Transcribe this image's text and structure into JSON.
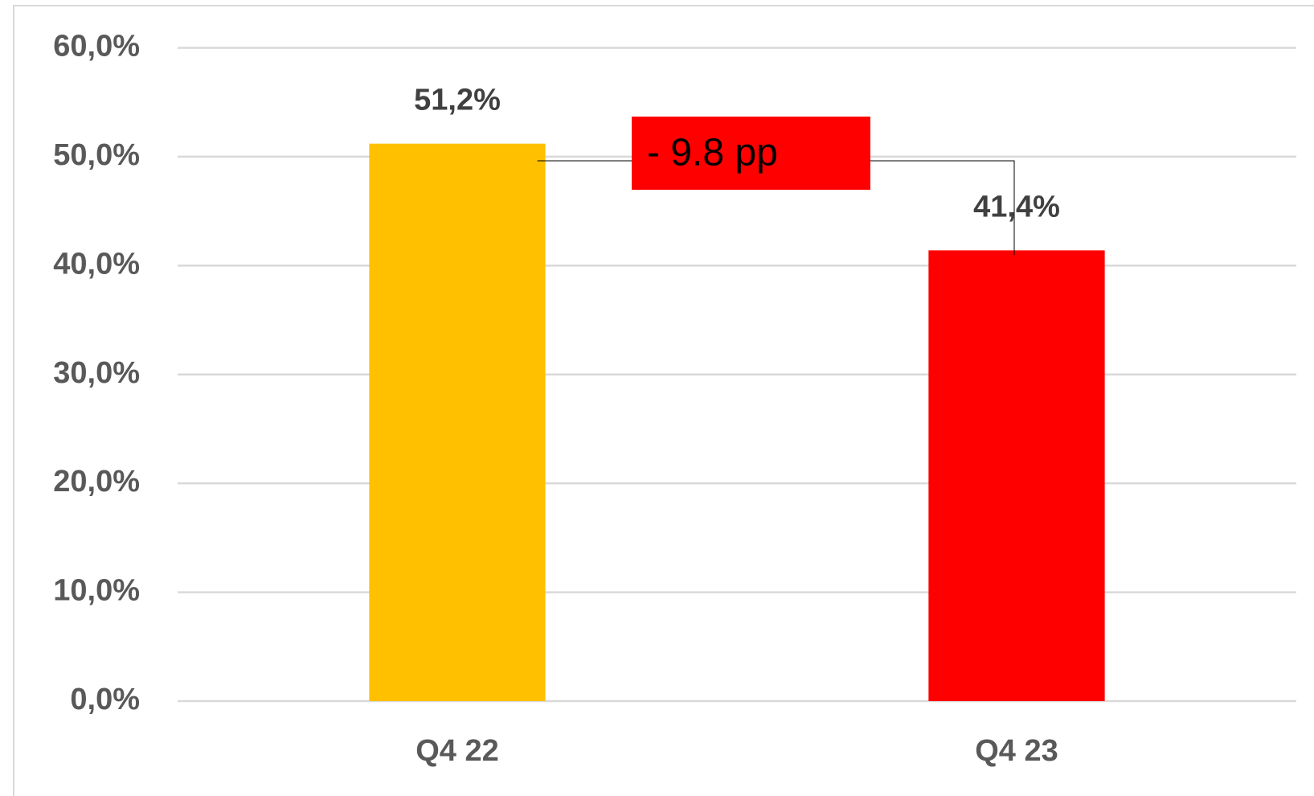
{
  "chart_data": {
    "type": "bar",
    "categories": [
      "Q4 22",
      "Q4 23"
    ],
    "values": [
      51.2,
      41.4
    ],
    "value_labels": [
      "51,2%",
      "41,4%"
    ],
    "colors": [
      "#ffc000",
      "#ff0000"
    ],
    "ylim": [
      0,
      60
    ],
    "yticks": [
      {
        "value": 0,
        "label": "0,0%"
      },
      {
        "value": 10,
        "label": "10,0%"
      },
      {
        "value": 20,
        "label": "20,0%"
      },
      {
        "value": 30,
        "label": "30,0%"
      },
      {
        "value": 40,
        "label": "40,0%"
      },
      {
        "value": 50,
        "label": "50,0%"
      },
      {
        "value": 60,
        "label": "60,0%"
      }
    ],
    "grid": true,
    "annotation": "- 9.8 pp",
    "annotation_color": "#ff0000"
  }
}
